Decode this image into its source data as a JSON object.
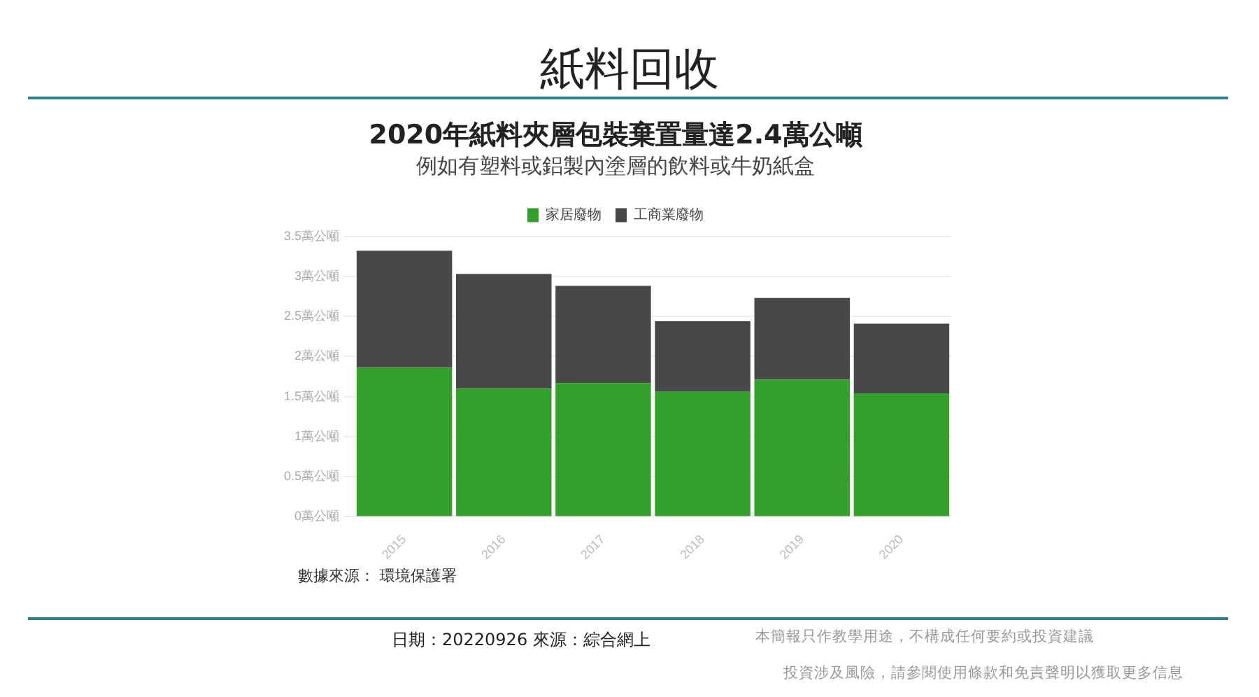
{
  "chart_data": {
    "type": "bar",
    "title": "2020年紙料夾層包裝棄置量達2.4萬公噸",
    "subtitle": "例如有塑料或鋁製內塗層的飲料或牛奶紙盒",
    "categories": [
      "2015",
      "2016",
      "2017",
      "2018",
      "2019",
      "2020"
    ],
    "series": [
      {
        "name": "家居廢物",
        "color": "#33a02c",
        "values": [
          1.86,
          1.6,
          1.67,
          1.56,
          1.71,
          1.54
        ]
      },
      {
        "name": "工商業廢物",
        "color": "#484848",
        "values": [
          1.46,
          1.43,
          1.21,
          0.88,
          1.02,
          0.87
        ]
      }
    ],
    "stacked": true,
    "ylim": [
      0,
      3.5
    ],
    "yticks": [
      {
        "value": 0,
        "label": "0萬公噸"
      },
      {
        "value": 0.5,
        "label": "0.5萬公噸"
      },
      {
        "value": 1,
        "label": "1萬公噸"
      },
      {
        "value": 1.5,
        "label": "1.5萬公噸"
      },
      {
        "value": 2,
        "label": "2萬公噸"
      },
      {
        "value": 2.5,
        "label": "2.5萬公噸"
      },
      {
        "value": 3,
        "label": "3萬公噸"
      },
      {
        "value": 3.5,
        "label": "3.5萬公噸"
      }
    ],
    "grid": "y",
    "legend": "top",
    "annotations": [
      "紙料回收",
      "數據來源： 環境保護署",
      "日期：20220926  來源：綜合網上",
      "本簡報只作教學用途，不構成任何要約或投資建議",
      "投資涉及風險，請參閱使用條款和免責聲明以獲取更多信息"
    ]
  }
}
